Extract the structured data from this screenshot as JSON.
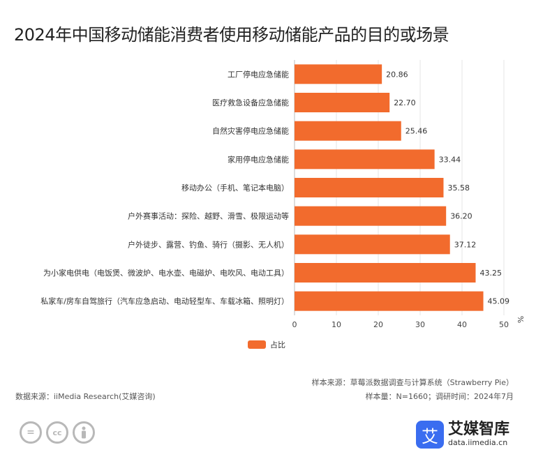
{
  "chart_data": {
    "type": "bar",
    "orientation": "horizontal",
    "title": "2024年中国移动储能消费者使用移动储能产品的目的或场景",
    "categories": [
      "工厂停电应急储能",
      "医疗救急设备应急储能",
      "自然灾害停电应急储能",
      "家用停电应急储能",
      "移动办公（手机、笔记本电脑）",
      "户外赛事活动：探险、越野、滑雪、极限运动等",
      "户外徒步、露营、钓鱼、骑行（摄影、无人机）",
      "为小家电供电（电饭煲、微波炉、电水壶、电磁炉、电吹风、电动工具）",
      "私家车/房车自驾旅行（汽车应急启动、电动轻型车、车载冰箱、照明灯）"
    ],
    "series": [
      {
        "name": "占比",
        "values": [
          20.86,
          22.7,
          25.46,
          33.44,
          35.58,
          36.2,
          37.12,
          43.25,
          45.09
        ]
      }
    ],
    "value_labels": [
      "20.86",
      "22.70",
      "25.46",
      "33.44",
      "35.58",
      "36.20",
      "37.12",
      "43.25",
      "45.09"
    ],
    "xticks": [
      0,
      10,
      20,
      30,
      40,
      50
    ],
    "xunit": "%",
    "xlim": [
      0,
      50
    ],
    "grid": true,
    "legend": "bottom-center",
    "bar_color": "#f26b2d"
  },
  "notes": {
    "sample_source": "样本来源：草莓派数据调查与计算系统（Strawberry Pie）",
    "sample_size": "样本量：N=1660；调研时间：2024年7月",
    "data_source": "数据来源：iiMedia Research(艾媒咨询)"
  },
  "brand": {
    "logo_char": "艾",
    "name": "艾媒智库",
    "url": "data.iimedia.cn"
  },
  "icons": [
    "equals-icon",
    "cc-icon",
    "person-icon"
  ]
}
